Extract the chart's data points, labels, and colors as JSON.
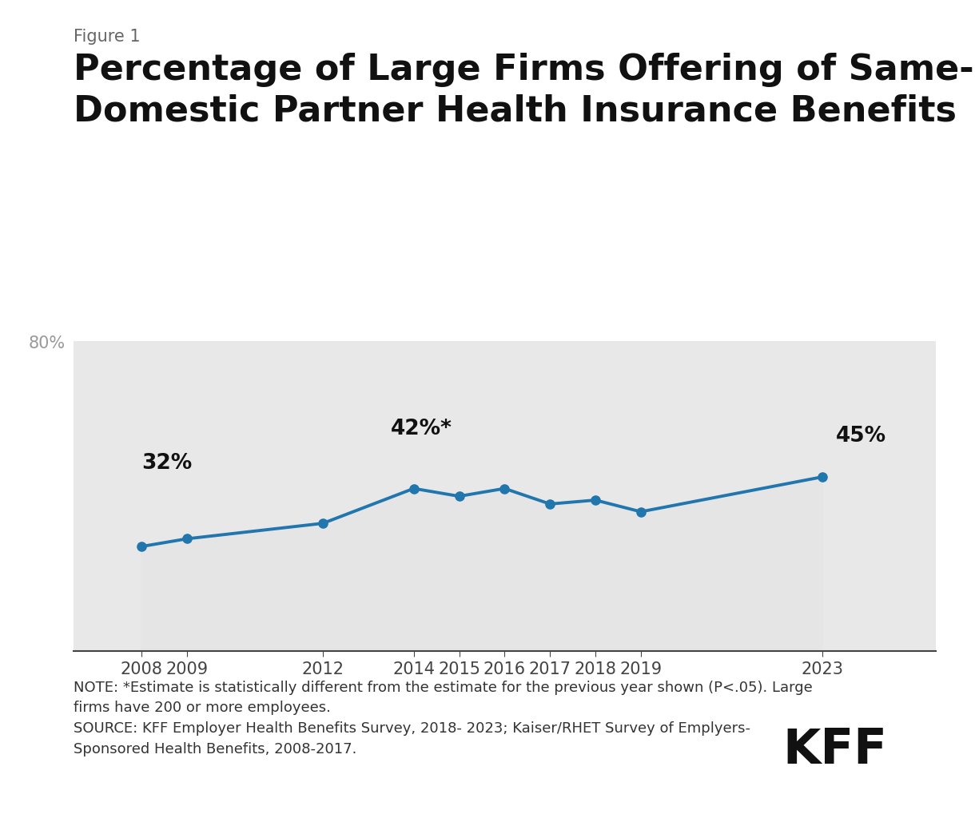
{
  "figure_label": "Figure 1",
  "title": "Percentage of Large Firms Offering of Same-Sex\nDomestic Partner Health Insurance Benefits",
  "years": [
    2008,
    2009,
    2012,
    2014,
    2015,
    2016,
    2017,
    2018,
    2019,
    2023
  ],
  "values": [
    27,
    29,
    33,
    42,
    40,
    42,
    38,
    39,
    36,
    45
  ],
  "line_color": "#2176AE",
  "fill_color": "#E5E5E5",
  "marker_color": "#2176AE",
  "background_color": "#FFFFFF",
  "plot_bg_color": "#E8E8E8",
  "ylim_top": 80,
  "ylim_bottom": 0,
  "ytick_label": "80%",
  "ann_32_text": "32%",
  "ann_42_text": "42%*",
  "ann_45_text": "45%",
  "note_text": "NOTE: *Estimate is statistically different from the estimate for the previous year shown (P<.05). Large\nfirms have 200 or more employees.\nSOURCE: KFF Employer Health Benefits Survey, 2018- 2023; Kaiser/RHET Survey of Emplyers-\nSponsored Health Benefits, 2008-2017.",
  "kff_text": "KFF",
  "title_fontsize": 32,
  "figure_label_fontsize": 15,
  "tick_fontsize": 15,
  "annotation_fontsize": 19,
  "note_fontsize": 13,
  "kff_fontsize": 44,
  "xlim_left": 2006.5,
  "xlim_right": 2025.5
}
